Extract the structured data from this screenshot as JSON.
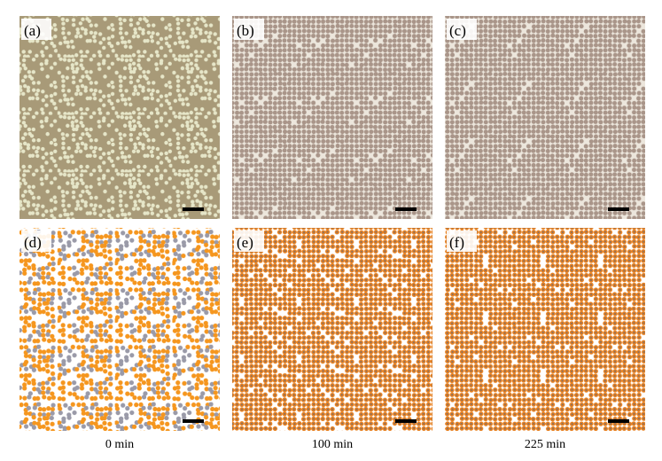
{
  "panels": [
    {
      "label": "(a)"
    },
    {
      "label": "(b)"
    },
    {
      "label": "(c)"
    },
    {
      "label": "(d)"
    },
    {
      "label": "(e)"
    },
    {
      "label": "(f)"
    }
  ],
  "captions": [
    "0 min",
    "100 min",
    "225 min"
  ]
}
